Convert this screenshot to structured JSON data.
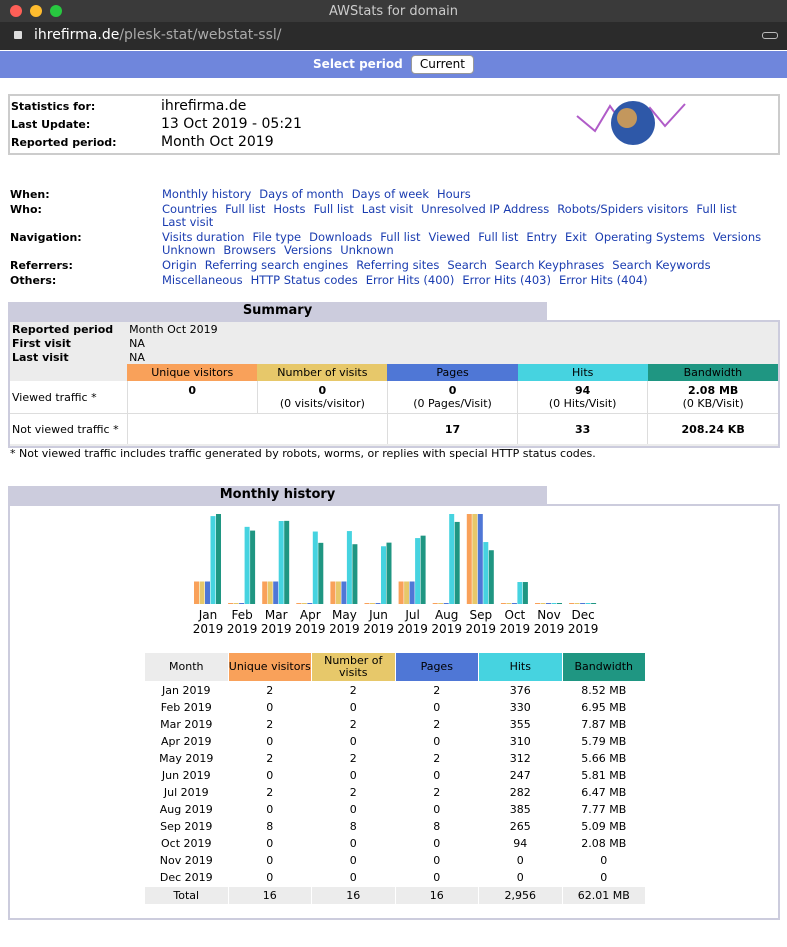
{
  "window": {
    "title": "AWStats for domain",
    "url_host": "ihrefirma.de",
    "url_path": "/plesk-stat/webstat-ssl/"
  },
  "period_bar": {
    "label": "Select period",
    "selected": "Current"
  },
  "stats": {
    "rows": [
      [
        "Statistics for:",
        "ihrefirma.de"
      ],
      [
        "Last Update:",
        "13 Oct 2019 - 05:21"
      ],
      [
        "Reported period:",
        "Month Oct 2019"
      ]
    ]
  },
  "nav": {
    "rows": [
      {
        "label": "When:",
        "links": [
          "Monthly history",
          "Days of month",
          "Days of week",
          "Hours"
        ]
      },
      {
        "label": "Who:",
        "links": [
          "Countries",
          "Full list",
          "Hosts",
          "Full list",
          "Last visit",
          "Unresolved IP Address",
          "Robots/Spiders visitors",
          "Full list",
          "Last visit"
        ]
      },
      {
        "label": "Navigation:",
        "links": [
          "Visits duration",
          "File type",
          "Downloads",
          "Full list",
          "Viewed",
          "Full list",
          "Entry",
          "Exit",
          "Operating Systems",
          "Versions",
          "Unknown",
          "Browsers",
          "Versions",
          "Unknown"
        ]
      },
      {
        "label": "Referrers:",
        "links": [
          "Origin",
          "Referring search engines",
          "Referring sites",
          "Search",
          "Search Keyphrases",
          "Search Keywords"
        ]
      },
      {
        "label": "Others:",
        "links": [
          "Miscellaneous",
          "HTTP Status codes",
          "Error Hits (400)",
          "Error Hits (403)",
          "Error Hits (404)"
        ]
      }
    ]
  },
  "summary": {
    "title": "Summary",
    "info": [
      [
        "Reported period",
        "Month Oct 2019"
      ],
      [
        "First visit",
        "NA"
      ],
      [
        "Last visit",
        "NA"
      ]
    ],
    "headers": [
      "Unique visitors",
      "Number of visits",
      "Pages",
      "Hits",
      "Bandwidth"
    ],
    "viewed": {
      "label": "Viewed traffic *",
      "cells": [
        [
          0,
          null
        ],
        [
          0,
          "(0 visits/visitor)"
        ],
        [
          0,
          "(0 Pages/Visit)"
        ],
        [
          94,
          "(0 Hits/Visit)"
        ],
        [
          "2.08 MB",
          "(0 KB/Visit)"
        ]
      ]
    },
    "not_viewed": {
      "label": "Not viewed traffic *",
      "cells": [
        17,
        33,
        "208.24 KB"
      ]
    }
  },
  "footnote": "* Not viewed traffic includes traffic generated by robots, worms, or replies with special HTTP status codes.",
  "monthly": {
    "title": "Monthly history",
    "axis_labels": [
      [
        "Jan",
        "2019"
      ],
      [
        "Feb",
        "2019"
      ],
      [
        "Mar",
        "2019"
      ],
      [
        "Apr",
        "2019"
      ],
      [
        "May",
        "2019"
      ],
      [
        "Jun",
        "2019"
      ],
      [
        "Jul",
        "2019"
      ],
      [
        "Aug",
        "2019"
      ],
      [
        "Sep",
        "2019"
      ],
      [
        "Oct",
        "2019"
      ],
      [
        "Nov",
        "2019"
      ],
      [
        "Dec",
        "2019"
      ]
    ],
    "headers": [
      "Month",
      "Unique visitors",
      "Number of visits",
      "Pages",
      "Hits",
      "Bandwidth"
    ],
    "colors": [
      "#f9a15a",
      "#e7c86a",
      "#4f77d6",
      "#46d3e0",
      "#1f9682"
    ],
    "rows": [
      [
        "Jan 2019",
        2,
        2,
        2,
        376,
        {
          "value": 8.52,
          "label": "8.52 MB"
        }
      ],
      [
        "Feb 2019",
        0,
        0,
        0,
        330,
        {
          "value": 6.95,
          "label": "6.95 MB"
        }
      ],
      [
        "Mar 2019",
        2,
        2,
        2,
        355,
        {
          "value": 7.87,
          "label": "7.87 MB"
        }
      ],
      [
        "Apr 2019",
        0,
        0,
        0,
        310,
        {
          "value": 5.79,
          "label": "5.79 MB"
        }
      ],
      [
        "May 2019",
        2,
        2,
        2,
        312,
        {
          "value": 5.66,
          "label": "5.66 MB"
        }
      ],
      [
        "Jun 2019",
        0,
        0,
        0,
        247,
        {
          "value": 5.81,
          "label": "5.81 MB"
        }
      ],
      [
        "Jul 2019",
        2,
        2,
        2,
        282,
        {
          "value": 6.47,
          "label": "6.47 MB"
        }
      ],
      [
        "Aug 2019",
        0,
        0,
        0,
        385,
        {
          "value": 7.77,
          "label": "7.77 MB"
        }
      ],
      [
        "Sep 2019",
        8,
        8,
        8,
        265,
        {
          "value": 5.09,
          "label": "5.09 MB"
        }
      ],
      [
        "Oct 2019",
        0,
        0,
        0,
        94,
        {
          "value": 2.08,
          "label": "2.08 MB"
        }
      ],
      [
        "Nov 2019",
        0,
        0,
        0,
        0,
        0
      ],
      [
        "Dec 2019",
        0,
        0,
        0,
        0,
        0
      ]
    ],
    "total": [
      "Total",
      16,
      16,
      16,
      {
        "value": 2956,
        "label": "2,956"
      },
      {
        "value": 62.01,
        "label": "62.01 MB"
      }
    ]
  }
}
